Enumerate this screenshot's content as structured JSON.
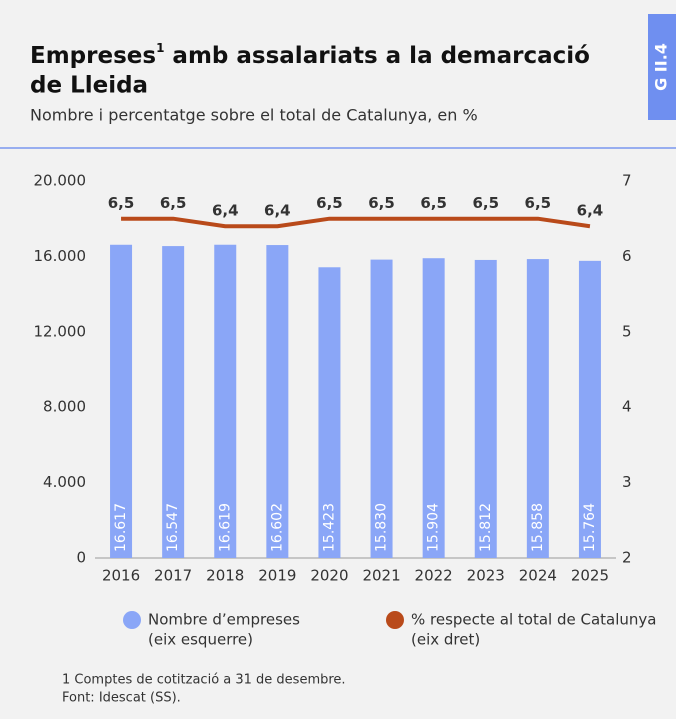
{
  "chart_data": {
    "type": "bar_line",
    "title": "Empreses",
    "title_note": "1",
    "title_rest": " amb assalariats a la demarcació",
    "title_line2": "de Lleida",
    "subtitle": "Nombre i percentatge sobre el total de Catalunya, en %",
    "tab": "G II.4",
    "categories": [
      "2016",
      "2017",
      "2018",
      "2019",
      "2020",
      "2021",
      "2022",
      "2023",
      "2024",
      "2025"
    ],
    "series": [
      {
        "name": "Nombre d’empreses",
        "note": "(eix esquerre)",
        "type": "bar",
        "color": "#8aa6f7",
        "values": [
          16617,
          16547,
          16619,
          16602,
          15423,
          15830,
          15904,
          15812,
          15858,
          15764
        ],
        "value_labels": [
          "16.617",
          "16.547",
          "16.619",
          "16.602",
          "15.423",
          "15.830",
          "15.904",
          "15.812",
          "15.858",
          "15.764"
        ]
      },
      {
        "name": "% respecte al total de Catalunya",
        "note": "(eix dret)",
        "type": "line",
        "axis": "y2",
        "color": "#b94a1a",
        "values": [
          6.5,
          6.5,
          6.4,
          6.4,
          6.5,
          6.5,
          6.5,
          6.5,
          6.5,
          6.4
        ],
        "value_labels": [
          "6,5",
          "6,5",
          "6,4",
          "6,4",
          "6,5",
          "6,5",
          "6,5",
          "6,5",
          "6,5",
          "6,4"
        ]
      }
    ],
    "ylim": [
      0,
      20000
    ],
    "yticks": [
      0,
      {
        "value": 4000,
        "label": "4.000"
      },
      {
        "value": 8000,
        "label": "8.000"
      },
      {
        "value": 12000,
        "label": "12.000"
      },
      {
        "value": 16000,
        "label": "16.000"
      },
      {
        "value": 20000,
        "label": "20.000"
      }
    ],
    "y2lim": [
      2,
      7
    ],
    "y2ticks": [
      2,
      3,
      4,
      5,
      6,
      7
    ],
    "footnotes": [
      "1 Comptes de cotització a 31 de desembre.",
      "Font: Idescat (SS)."
    ]
  }
}
